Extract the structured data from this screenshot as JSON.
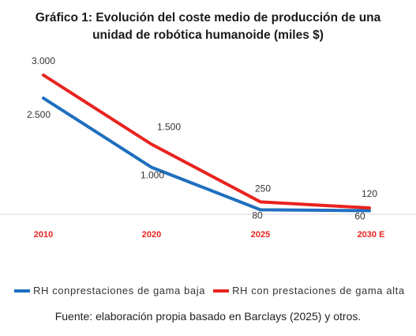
{
  "chart_data": {
    "type": "line",
    "title_line1": "Gráfico 1: Evolución del coste medio de producción de una",
    "title_line2": "unidad de robótica humanoide (miles $)",
    "categories": [
      "2010",
      "2020",
      "2025",
      "2030 E"
    ],
    "series": [
      {
        "name": "RH conprestaciones de gama baja",
        "values": [
          2500,
          1000,
          80,
          60
        ],
        "labels": [
          "2.500",
          "1.000",
          "80",
          "60"
        ],
        "color": "#1f6fbf"
      },
      {
        "name": "RH con prestaciones de gama alta",
        "values": [
          3000,
          1500,
          250,
          120
        ],
        "labels": [
          "3.000",
          "1.500",
          "250",
          "120"
        ],
        "color": "#e8231e"
      }
    ],
    "tick_label_color": "#e8231e",
    "ylim": [
      0,
      3000
    ],
    "grid": false,
    "legend_position": "bottom"
  },
  "source": "Fuente: elaboración propia basado en Barclays (2025) y otros."
}
